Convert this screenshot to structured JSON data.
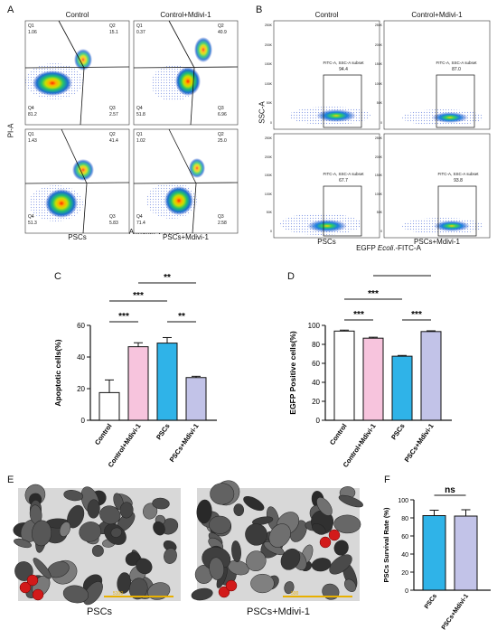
{
  "panels": {
    "A": "A",
    "B": "B",
    "C": "C",
    "D": "D",
    "E": "E",
    "F": "F"
  },
  "panelA": {
    "ylabel": "PI-A",
    "xlabel": "Annexin V-FITC-A",
    "plots": [
      {
        "title": "Control",
        "bottom": "",
        "q1": "1.06",
        "q2": "15.1",
        "q3": "2.57",
        "q4": "81.2"
      },
      {
        "title": "Control+Mdivi-1",
        "bottom": "",
        "q1": "0.37",
        "q2": "40.9",
        "q3": "6.96",
        "q4": "51.8"
      },
      {
        "title": "",
        "bottom": "PSCs",
        "q1": "1.43",
        "q2": "41.4",
        "q3": "5.83",
        "q4": "51.3"
      },
      {
        "title": "",
        "bottom": "PSCs+Mdivi-1",
        "q1": "1.02",
        "q2": "25.0",
        "q3": "2.58",
        "q4": "71.4"
      }
    ],
    "quadrant_names": {
      "q1": "Q1",
      "q2": "Q2",
      "q3": "Q3",
      "q4": "Q4"
    }
  },
  "panelB": {
    "ylabel": "SSC-A",
    "xlabel_prefix": "EGFP ",
    "xlabel_italic": "Ecoli",
    "xlabel_suffix": ".-FITC-A",
    "gate_label": "FITC-A, SSC-A subset",
    "plots": [
      {
        "title": "Control",
        "bottom": "",
        "value": "94.4"
      },
      {
        "title": "Control+Mdivi-1",
        "bottom": "",
        "value": "87.0"
      },
      {
        "title": "",
        "bottom": "PSCs",
        "value": "67.7"
      },
      {
        "title": "",
        "bottom": "PSCs+Mdivi-1",
        "value": "93.8"
      }
    ],
    "yticks": [
      "250K",
      "200K",
      "150K",
      "100K",
      "50K",
      "0"
    ]
  },
  "chart_data": [
    {
      "type": "bar",
      "panel": "C",
      "ylabel": "Apoptotic cells(%)",
      "categories": [
        "Control",
        "Control+Mdivi-1",
        "PSCs",
        "PSCs+Mdivi-1"
      ],
      "values": [
        17.5,
        46.5,
        48.8,
        27.0
      ],
      "errors": [
        8,
        2.5,
        3.5,
        0.8
      ],
      "colors": [
        "#ffffff",
        "#f7c4dd",
        "#2fb3e8",
        "#c2c3e8"
      ],
      "ylim": [
        0,
        60
      ],
      "yticks": [
        0,
        20,
        40,
        60
      ],
      "significance": [
        {
          "from": 0,
          "to": 1,
          "label": "***"
        },
        {
          "from": 2,
          "to": 3,
          "label": "**"
        },
        {
          "from": 0,
          "to": 2,
          "label": "***"
        },
        {
          "from": 1,
          "to": 3,
          "label": "**"
        }
      ]
    },
    {
      "type": "bar",
      "panel": "D",
      "ylabel": "EGFP Positive cells(%)",
      "categories": [
        "Control",
        "Control+Mdivi-1",
        "PSCs",
        "PSCs+Mdivi-1"
      ],
      "values": [
        94.0,
        86.5,
        67.5,
        93.5
      ],
      "errors": [
        1,
        1,
        0.8,
        0.8
      ],
      "colors": [
        "#ffffff",
        "#f7c4dd",
        "#2fb3e8",
        "#c2c3e8"
      ],
      "ylim": [
        0,
        100
      ],
      "yticks": [
        0,
        20,
        40,
        60,
        80,
        100
      ],
      "significance": [
        {
          "from": 0,
          "to": 1,
          "label": "***"
        },
        {
          "from": 2,
          "to": 3,
          "label": "***"
        },
        {
          "from": 0,
          "to": 2,
          "label": "***"
        },
        {
          "from": 1,
          "to": 3,
          "label": "***"
        }
      ]
    },
    {
      "type": "bar",
      "panel": "F",
      "ylabel": "PSCs Survival Rate (%)",
      "categories": [
        "PSCs",
        "PSCs+Mdivi-1"
      ],
      "values": [
        82.5,
        82.0
      ],
      "errors": [
        6,
        7
      ],
      "colors": [
        "#2fb3e8",
        "#c2c3e8"
      ],
      "ylim": [
        0,
        100
      ],
      "yticks": [
        0,
        20,
        40,
        60,
        80,
        100
      ],
      "significance": [
        {
          "from": 0,
          "to": 1,
          "label": "ns"
        }
      ]
    }
  ],
  "panelE": {
    "left_label": "PSCs",
    "right_label": "PSCs+Mdivi-1",
    "scalebar_left": "5100",
    "scalebar_right": "500"
  }
}
